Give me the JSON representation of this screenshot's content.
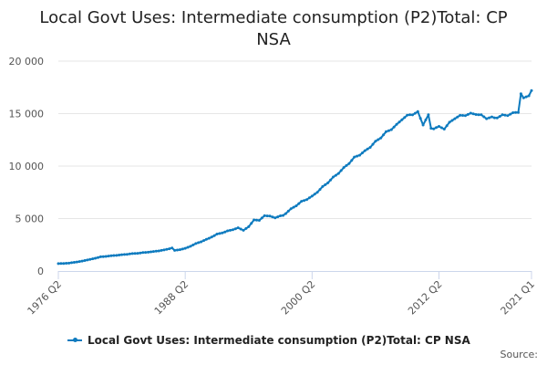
{
  "chart_data": {
    "type": "line",
    "title_line1": "Local Govt Uses: Intermediate consumption (P2)Total: CP",
    "title_line2": "NSA",
    "xlabel": "",
    "ylabel": "",
    "ylim": [
      0,
      20000
    ],
    "yticks": [
      0,
      5000,
      10000,
      15000,
      20000
    ],
    "ytick_labels": [
      "0",
      "5 000",
      "10 000",
      "15 000",
      "20 000"
    ],
    "x_start": "1976 Q2",
    "x_end": "2021 Q1",
    "xtick_labels": [
      "1976 Q2",
      "1988 Q2",
      "2000 Q2",
      "2012 Q2",
      "2021 Q1"
    ],
    "xtick_index": [
      0,
      48,
      96,
      144,
      179
    ],
    "grid": true,
    "legend_position": "bottom-left",
    "series": [
      {
        "name": "Local Govt Uses: Intermediate consumption (P2)Total: CP NSA",
        "color": "#0e7bbf",
        "anchors": [
          [
            0,
            700
          ],
          [
            4,
            750
          ],
          [
            8,
            900
          ],
          [
            12,
            1100
          ],
          [
            16,
            1350
          ],
          [
            20,
            1450
          ],
          [
            24,
            1550
          ],
          [
            28,
            1650
          ],
          [
            32,
            1750
          ],
          [
            36,
            1850
          ],
          [
            40,
            2000
          ],
          [
            43,
            2200
          ],
          [
            44,
            1950
          ],
          [
            48,
            2150
          ],
          [
            52,
            2600
          ],
          [
            56,
            3000
          ],
          [
            60,
            3500
          ],
          [
            64,
            3800
          ],
          [
            68,
            4100
          ],
          [
            70,
            3900
          ],
          [
            72,
            4200
          ],
          [
            74,
            4900
          ],
          [
            76,
            4800
          ],
          [
            78,
            5300
          ],
          [
            82,
            5100
          ],
          [
            85,
            5300
          ],
          [
            88,
            5900
          ],
          [
            92,
            6600
          ],
          [
            96,
            7100
          ],
          [
            100,
            8000
          ],
          [
            104,
            8900
          ],
          [
            108,
            9800
          ],
          [
            112,
            10800
          ],
          [
            116,
            11400
          ],
          [
            120,
            12300
          ],
          [
            124,
            13200
          ],
          [
            128,
            13900
          ],
          [
            130,
            14500
          ],
          [
            133,
            14900
          ],
          [
            136,
            15100
          ],
          [
            138,
            14000
          ],
          [
            140,
            14800
          ],
          [
            141,
            13600
          ],
          [
            144,
            13700
          ],
          [
            146,
            13600
          ],
          [
            148,
            14100
          ],
          [
            150,
            14600
          ],
          [
            154,
            14900
          ],
          [
            158,
            15000
          ],
          [
            160,
            14800
          ],
          [
            162,
            14600
          ],
          [
            165,
            14600
          ],
          [
            168,
            14800
          ],
          [
            172,
            15000
          ],
          [
            174,
            15200
          ],
          [
            175,
            16900
          ],
          [
            176,
            16400
          ],
          [
            178,
            16800
          ],
          [
            179,
            17200
          ]
        ]
      }
    ]
  },
  "credits": "Source:"
}
